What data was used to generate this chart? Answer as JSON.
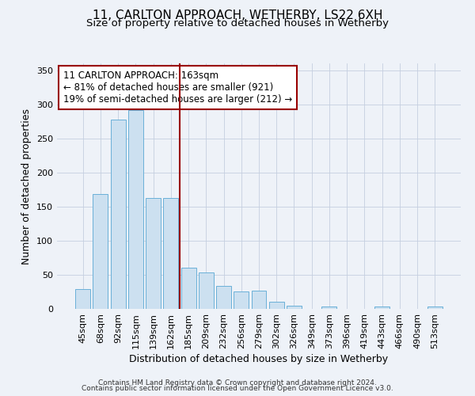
{
  "title": "11, CARLTON APPROACH, WETHERBY, LS22 6XH",
  "subtitle": "Size of property relative to detached houses in Wetherby",
  "xlabel": "Distribution of detached houses by size in Wetherby",
  "ylabel": "Number of detached properties",
  "categories": [
    "45sqm",
    "68sqm",
    "92sqm",
    "115sqm",
    "139sqm",
    "162sqm",
    "185sqm",
    "209sqm",
    "232sqm",
    "256sqm",
    "279sqm",
    "302sqm",
    "326sqm",
    "349sqm",
    "373sqm",
    "396sqm",
    "419sqm",
    "443sqm",
    "466sqm",
    "490sqm",
    "513sqm"
  ],
  "values": [
    29,
    168,
    277,
    291,
    163,
    163,
    60,
    54,
    34,
    26,
    27,
    11,
    5,
    0,
    4,
    0,
    0,
    4,
    0,
    0,
    4
  ],
  "bar_color": "#cce0f0",
  "bar_edgecolor": "#6ab0d8",
  "bar_linewidth": 0.7,
  "grid_color": "#c5cfe0",
  "bg_color": "#eef2f8",
  "vline_x_index": 5,
  "vline_color": "#990000",
  "annotation_text": "11 CARLTON APPROACH: 163sqm\n← 81% of detached houses are smaller (921)\n19% of semi-detached houses are larger (212) →",
  "annotation_box_facecolor": "#ffffff",
  "annotation_box_edgecolor": "#990000",
  "ylim": [
    0,
    360
  ],
  "yticks": [
    0,
    50,
    100,
    150,
    200,
    250,
    300,
    350
  ],
  "footer1": "Contains HM Land Registry data © Crown copyright and database right 2024.",
  "footer2": "Contains public sector information licensed under the Open Government Licence v3.0.",
  "title_fontsize": 11,
  "subtitle_fontsize": 9.5,
  "ylabel_fontsize": 9,
  "xlabel_fontsize": 9,
  "tick_fontsize": 8,
  "annotation_fontsize": 8.5,
  "footer_fontsize": 6.5
}
